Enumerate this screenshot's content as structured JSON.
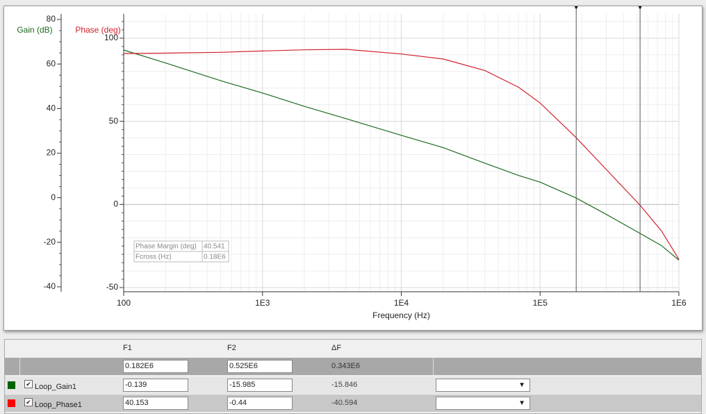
{
  "chart_data": {
    "type": "line",
    "y_label": "Gain (dB)",
    "y2_label": "Phase (deg)",
    "x_label": "Frequency (Hz)",
    "x": [
      100,
      200,
      500,
      1000,
      2000,
      4000,
      10000,
      20000,
      40000,
      70000,
      100000,
      182000,
      300000,
      525000,
      750000,
      1000000
    ],
    "series": [
      {
        "color": "#1e6b1e",
        "axis": "y",
        "values": [
          66.3,
          60.5,
          52.5,
          47,
          41,
          35.5,
          28,
          22.5,
          15.5,
          10,
          7,
          -0.14,
          -7.5,
          -16,
          -21.5,
          -28
        ]
      },
      {
        "color": "#d0202a",
        "axis": "y2",
        "values": [
          90.8,
          91,
          91.5,
          92.3,
          93,
          93.3,
          90.5,
          87.5,
          80.5,
          70.5,
          61,
          40.15,
          21,
          -0.44,
          -16,
          -33
        ]
      }
    ],
    "x_log": true,
    "xlim": [
      100,
      1000000
    ],
    "xticks": [
      100,
      {
        "value": 1000,
        "label": "1E3"
      },
      {
        "value": 10000,
        "label": "1E4"
      },
      {
        "value": 100000,
        "label": "1E5"
      },
      {
        "value": 1000000,
        "label": "1E6"
      }
    ],
    "ylim": [
      -42.2,
      82.5
    ],
    "yticks": [
      -40,
      -20,
      0,
      20,
      40,
      60,
      80
    ],
    "y_color": "#1e6b1e",
    "y2lim": [
      -52.5,
      114.6
    ],
    "y2ticks": [
      -50,
      0,
      50,
      100
    ],
    "y2_color": "#d0202a",
    "grid": true,
    "cursors": [
      182000,
      525000
    ],
    "readout": [
      [
        "Phase Margin (deg)",
        "40.541"
      ],
      [
        "Fcross (Hz)",
        "0.18E6"
      ]
    ]
  },
  "table": {
    "header": [
      "F1",
      "F2",
      "ΔF"
    ],
    "cursor_row": [
      "0.182E6",
      "0.525E6",
      "0.343E6"
    ],
    "rows": [
      {
        "name": "Loop_Gain1",
        "color": "#006400",
        "values": [
          "-0.139",
          "-15.985",
          "-15.846"
        ]
      },
      {
        "name": "Loop_Phase1",
        "color": "#ff0000",
        "values": [
          "40.153",
          "-0.44",
          "-40.594"
        ]
      }
    ]
  }
}
